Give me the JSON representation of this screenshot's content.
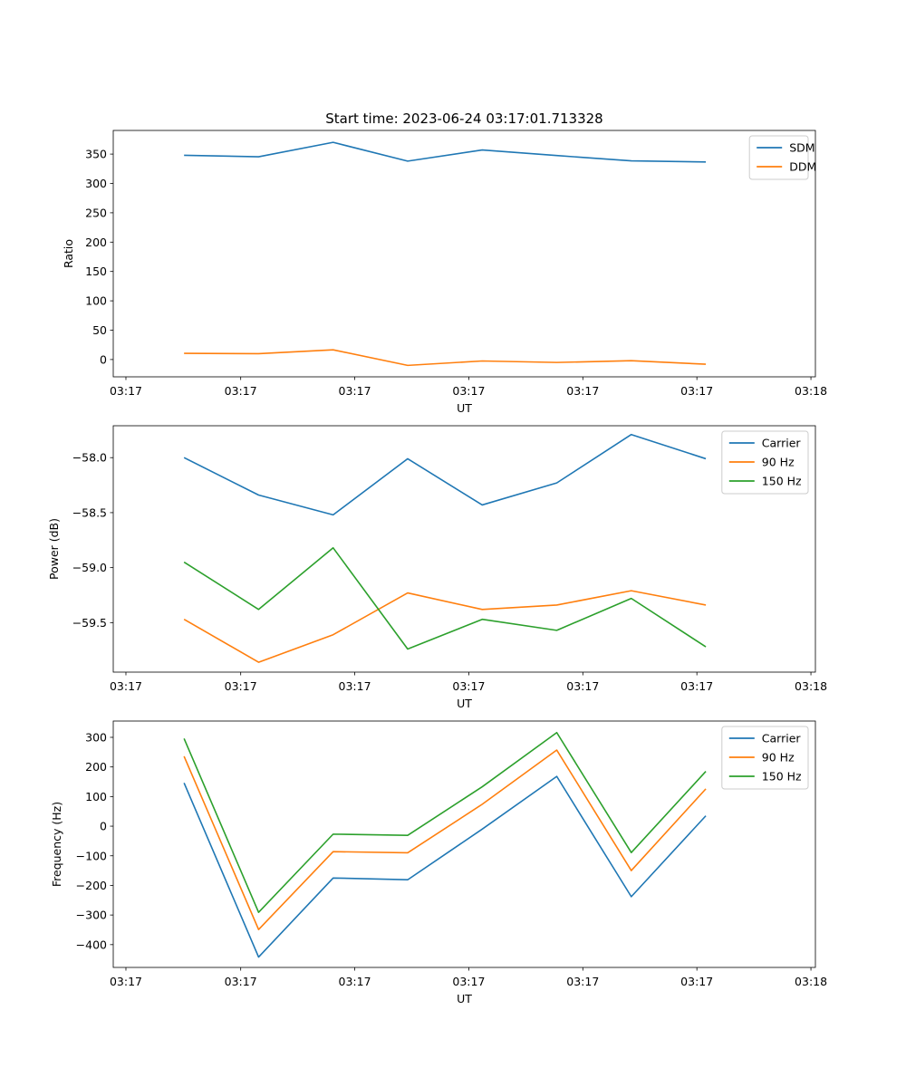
{
  "figure": {
    "title": "Start time: 2023-06-24 03:17:01.713328"
  },
  "colors": {
    "blue": "#1f77b4",
    "orange": "#ff7f0e",
    "green": "#2ca02c"
  },
  "chart_data": [
    {
      "type": "line",
      "title": "Start time: 2023-06-24 03:17:01.713328",
      "xlabel": "UT",
      "ylabel": "Ratio",
      "x": [
        1,
        2,
        3,
        4,
        5,
        6,
        7,
        8
      ],
      "xlim": [
        0.05,
        9.47
      ],
      "ylim": [
        -29.5,
        390.3
      ],
      "x_ticks": [
        {
          "value": 0.22,
          "label": "03:17"
        },
        {
          "value": 1.76,
          "label": "03:17"
        },
        {
          "value": 3.29,
          "label": "03:17"
        },
        {
          "value": 4.82,
          "label": "03:17"
        },
        {
          "value": 6.35,
          "label": "03:17"
        },
        {
          "value": 7.88,
          "label": "03:17"
        },
        {
          "value": 9.41,
          "label": "03:18"
        }
      ],
      "y_ticks": [
        0,
        50,
        100,
        150,
        200,
        250,
        300,
        350
      ],
      "legend": "top-right",
      "grid": false,
      "series": [
        {
          "name": "SDM",
          "color": "#1f77b4",
          "values": [
            348,
            345.5,
            370,
            338,
            357,
            347.5,
            338.5,
            336.5
          ]
        },
        {
          "name": "DDM",
          "color": "#ff7f0e",
          "values": [
            10.5,
            10,
            16.5,
            -10,
            -2.5,
            -5,
            -2,
            -8
          ]
        }
      ]
    },
    {
      "type": "line",
      "title": "",
      "xlabel": "UT",
      "ylabel": "Power (dB)",
      "x": [
        1,
        2,
        3,
        4,
        5,
        6,
        7,
        8
      ],
      "xlim": [
        0.05,
        9.47
      ],
      "ylim": [
        -59.95,
        -57.71
      ],
      "x_ticks": [
        {
          "value": 0.22,
          "label": "03:17"
        },
        {
          "value": 1.76,
          "label": "03:17"
        },
        {
          "value": 3.29,
          "label": "03:17"
        },
        {
          "value": 4.82,
          "label": "03:17"
        },
        {
          "value": 6.35,
          "label": "03:17"
        },
        {
          "value": 7.88,
          "label": "03:17"
        },
        {
          "value": 9.41,
          "label": "03:18"
        }
      ],
      "y_ticks": [
        {
          "value": -58.0,
          "label": "−58.0"
        },
        {
          "value": -58.5,
          "label": "−58.5"
        },
        {
          "value": -59.0,
          "label": "−59.0"
        },
        {
          "value": -59.5,
          "label": "−59.5"
        }
      ],
      "legend": "top-right",
      "grid": false,
      "series": [
        {
          "name": "Carrier",
          "color": "#1f77b4",
          "values": [
            -58.0,
            -58.34,
            -58.52,
            -58.01,
            -58.43,
            -58.23,
            -57.79,
            -58.01
          ]
        },
        {
          "name": "90 Hz",
          "color": "#ff7f0e",
          "values": [
            -59.47,
            -59.86,
            -59.61,
            -59.23,
            -59.38,
            -59.34,
            -59.21,
            -59.34
          ]
        },
        {
          "name": "150 Hz",
          "color": "#2ca02c",
          "values": [
            -58.95,
            -59.38,
            -58.82,
            -59.74,
            -59.47,
            -59.57,
            -59.28,
            -59.72
          ]
        }
      ]
    },
    {
      "type": "line",
      "title": "",
      "xlabel": "UT",
      "ylabel": "Frequency (Hz)",
      "x": [
        1,
        2,
        3,
        4,
        5,
        6,
        7,
        8
      ],
      "xlim": [
        0.05,
        9.47
      ],
      "ylim": [
        -477,
        355
      ],
      "x_ticks": [
        {
          "value": 0.22,
          "label": "03:17"
        },
        {
          "value": 1.76,
          "label": "03:17"
        },
        {
          "value": 3.29,
          "label": "03:17"
        },
        {
          "value": 4.82,
          "label": "03:17"
        },
        {
          "value": 6.35,
          "label": "03:17"
        },
        {
          "value": 7.88,
          "label": "03:17"
        },
        {
          "value": 9.41,
          "label": "03:18"
        }
      ],
      "y_ticks": [
        {
          "value": 300,
          "label": "300"
        },
        {
          "value": 200,
          "label": "200"
        },
        {
          "value": 100,
          "label": "100"
        },
        {
          "value": 0,
          "label": "0"
        },
        {
          "value": -100,
          "label": "−100"
        },
        {
          "value": -200,
          "label": "−200"
        },
        {
          "value": -300,
          "label": "−300"
        },
        {
          "value": -400,
          "label": "−400"
        }
      ],
      "legend": "top-right",
      "grid": false,
      "series": [
        {
          "name": "Carrier",
          "color": "#1f77b4",
          "values": [
            146,
            -442,
            -175,
            -181,
            -10,
            168,
            -238,
            35
          ]
        },
        {
          "name": "90 Hz",
          "color": "#ff7f0e",
          "values": [
            236,
            -349,
            -86,
            -90,
            74,
            257,
            -150,
            126
          ]
        },
        {
          "name": "150 Hz",
          "color": "#2ca02c",
          "values": [
            296,
            -291,
            -27,
            -31,
            133,
            316,
            -89,
            185
          ]
        }
      ]
    }
  ]
}
